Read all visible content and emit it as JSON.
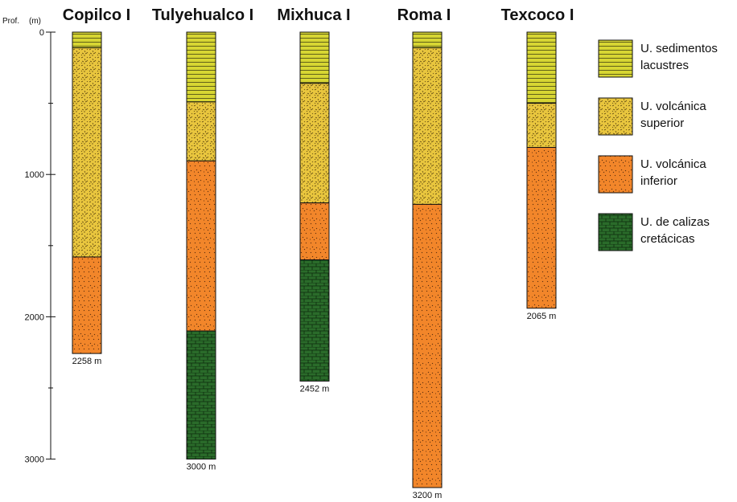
{
  "axis": {
    "caption_prof": "Prof.",
    "caption_unit": "(m)",
    "major_ticks": [
      0,
      1000,
      2000,
      3000
    ],
    "minor_ticks": [
      500,
      1500,
      2500
    ],
    "max_depth": 3200
  },
  "units": {
    "lacustre": {
      "color": "#d7d633",
      "label_lines": [
        "U. sedimentos",
        "lacustres"
      ]
    },
    "vsup": {
      "color": "#e9c63e",
      "label_lines": [
        "U. volcánica",
        "superior"
      ]
    },
    "vinf": {
      "color": "#f2862a",
      "label_lines": [
        "U. volcánica",
        "inferior"
      ]
    },
    "caliza": {
      "color": "#2a6b2a",
      "label_lines": [
        "U. de calizas",
        "cretácicas"
      ]
    }
  },
  "wells": [
    {
      "name": "Copilco I",
      "total_depth_label": "2258 m",
      "layers": [
        {
          "unit": "lacustre",
          "top": 0,
          "bottom": 110
        },
        {
          "unit": "vsup",
          "top": 110,
          "bottom": 1580
        },
        {
          "unit": "vinf",
          "top": 1580,
          "bottom": 2258
        }
      ]
    },
    {
      "name": "Tulyehualco I",
      "total_depth_label": "3000 m",
      "layers": [
        {
          "unit": "lacustre",
          "top": 0,
          "bottom": 490
        },
        {
          "unit": "vsup",
          "top": 490,
          "bottom": 905
        },
        {
          "unit": "vinf",
          "top": 905,
          "bottom": 2100
        },
        {
          "unit": "caliza",
          "top": 2100,
          "bottom": 3000
        }
      ]
    },
    {
      "name": "Mixhuca I",
      "total_depth_label": "2452 m",
      "layers": [
        {
          "unit": "lacustre",
          "top": 0,
          "bottom": 360
        },
        {
          "unit": "vsup",
          "top": 360,
          "bottom": 1200
        },
        {
          "unit": "vinf",
          "top": 1200,
          "bottom": 1600
        },
        {
          "unit": "caliza",
          "top": 1600,
          "bottom": 2452
        }
      ]
    },
    {
      "name": "Roma I",
      "total_depth_label": "3200 m",
      "layers": [
        {
          "unit": "lacustre",
          "top": 0,
          "bottom": 110
        },
        {
          "unit": "vsup",
          "top": 110,
          "bottom": 1210
        },
        {
          "unit": "vinf",
          "top": 1210,
          "bottom": 3200
        }
      ]
    },
    {
      "name": "Texcoco I",
      "total_depth_label": "2065 m",
      "layers": [
        {
          "unit": "lacustre",
          "top": 0,
          "bottom": 500
        },
        {
          "unit": "vsup",
          "top": 500,
          "bottom": 810
        },
        {
          "unit": "vinf",
          "top": 810,
          "bottom": 1940
        }
      ]
    }
  ],
  "legend_order": [
    "lacustre",
    "vsup",
    "vinf",
    "caliza"
  ]
}
